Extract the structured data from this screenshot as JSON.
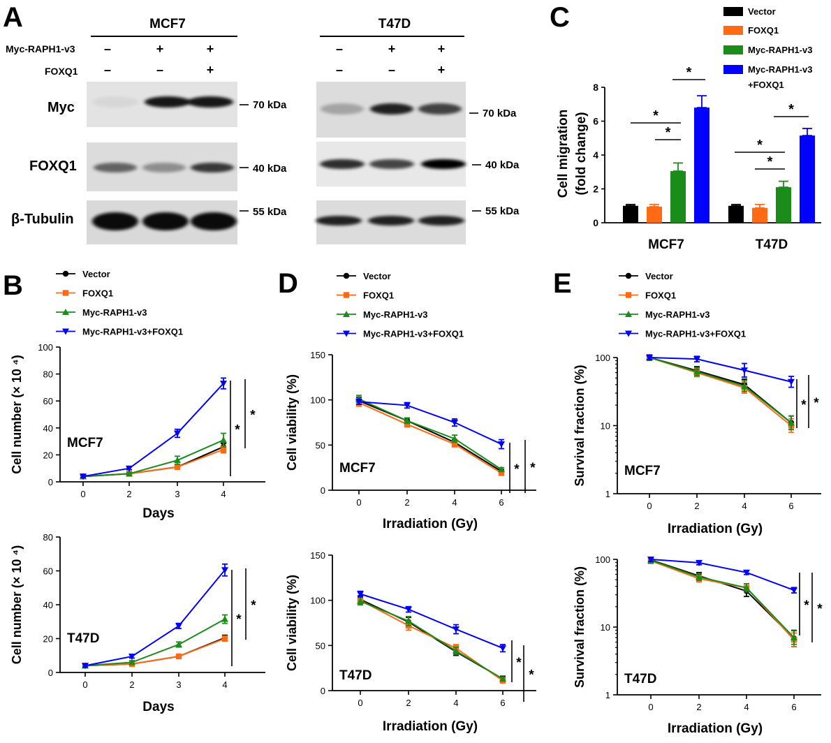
{
  "colors": {
    "vector": "#000000",
    "foxq1": "#ff6a13",
    "myc_raph1": "#1a8c1a",
    "combo": "#0000ff"
  },
  "panel_a": {
    "letter": "A",
    "row_labels": {
      "myc_raph1": "Myc-RAPH1-v3",
      "foxq1": "FOXQ1"
    },
    "blot_labels": [
      "Myc",
      "FOXQ1",
      "β-Tubulin"
    ],
    "cell_lines": [
      {
        "name": "MCF7",
        "myc_raph1": [
          "–",
          "+",
          "+"
        ],
        "foxq1": [
          "–",
          "–",
          "+"
        ],
        "sizes": [
          "70 kDa",
          "40 kDa",
          "55 kDa"
        ]
      },
      {
        "name": "T47D",
        "myc_raph1": [
          "–",
          "+",
          "+"
        ],
        "foxq1": [
          "–",
          "–",
          "+"
        ],
        "sizes": [
          "70 kDa",
          "40 kDa",
          "55 kDa"
        ]
      }
    ],
    "band_intensity": {
      "MCF7": {
        "myc": [
          0.05,
          0.9,
          0.9
        ],
        "foxq1": [
          0.55,
          0.35,
          0.75
        ],
        "tubulin": [
          0.95,
          0.95,
          0.95
        ]
      },
      "T47D": {
        "myc": [
          0.25,
          0.85,
          0.7
        ],
        "foxq1": [
          0.8,
          0.7,
          1.0
        ],
        "tubulin": [
          0.85,
          0.85,
          0.85
        ]
      }
    }
  },
  "chart_data": [
    {
      "id": "C",
      "panel_letter": "C",
      "type": "bar",
      "categories": [
        "MCF7",
        "T47D"
      ],
      "ylabel_lines": [
        "Cell migration",
        "(fold change)"
      ],
      "ylim": [
        0,
        8
      ],
      "yticks": [
        "0",
        "2",
        "4",
        "6",
        "8"
      ],
      "legend_position": "top-right",
      "series": [
        {
          "name": "Vector",
          "color": "#000000",
          "values": [
            1.0,
            1.0
          ],
          "errors": [
            0.08,
            0.08
          ]
        },
        {
          "name": "FOXQ1",
          "color": "#ff6a13",
          "values": [
            0.95,
            0.88
          ],
          "errors": [
            0.13,
            0.2
          ]
        },
        {
          "name": "Myc-RAPH1-v3",
          "color": "#1a8c1a",
          "values": [
            3.05,
            2.1
          ],
          "errors": [
            0.48,
            0.35
          ]
        },
        {
          "name": "Myc-RAPH1-v3\n+FOXQ1",
          "color": "#0000ff",
          "values": [
            6.8,
            5.15
          ],
          "errors": [
            0.7,
            0.42
          ]
        }
      ],
      "significance": [
        "*",
        "*",
        "*",
        "*",
        "*",
        "*"
      ]
    },
    {
      "id": "B1",
      "panel_letter": "B",
      "cell_line": "MCF7",
      "type": "line",
      "xlabel": "Days",
      "ylabel": "Cell number (× 10 ⁴)",
      "x_categories": [
        "0",
        "2",
        "3",
        "4"
      ],
      "ylim": [
        0,
        100
      ],
      "yticks": [
        "0",
        "20",
        "40",
        "60",
        "80",
        "100"
      ],
      "legend_position": "top-left",
      "series": [
        {
          "name": "Vector",
          "color": "#000000",
          "marker": "circle",
          "values": [
            4,
            6,
            11,
            26
          ],
          "errors": [
            0.8,
            0.8,
            1.5,
            2.5
          ]
        },
        {
          "name": "FOXQ1",
          "color": "#ff6a13",
          "marker": "square",
          "values": [
            4,
            6,
            11,
            24
          ],
          "errors": [
            0.8,
            0.8,
            1.5,
            2.5
          ]
        },
        {
          "name": "Myc-RAPH1-v3",
          "color": "#1a8c1a",
          "marker": "triangle-up",
          "values": [
            4,
            6,
            16,
            31
          ],
          "errors": [
            0.8,
            1,
            3,
            5
          ]
        },
        {
          "name": "Myc-RAPH1-v3+FOXQ1",
          "color": "#0000ff",
          "marker": "triangle-down",
          "values": [
            4,
            10,
            36,
            73
          ],
          "errors": [
            0.8,
            1,
            3,
            4
          ]
        }
      ],
      "significance": [
        "*",
        "*"
      ]
    },
    {
      "id": "B2",
      "cell_line": "T47D",
      "type": "line",
      "xlabel": "Days",
      "ylabel": "Cell number (× 10 ⁴)",
      "x_categories": [
        "0",
        "2",
        "3",
        "4"
      ],
      "ylim": [
        0,
        80
      ],
      "yticks": [
        "0",
        "20",
        "40",
        "60",
        "80"
      ],
      "series": [
        {
          "name": "Vector",
          "color": "#000000",
          "marker": "circle",
          "values": [
            4,
            5,
            9.5,
            20.5
          ],
          "errors": [
            0.8,
            0.8,
            1.2,
            1.5
          ]
        },
        {
          "name": "FOXQ1",
          "color": "#ff6a13",
          "marker": "square",
          "values": [
            4,
            5,
            9.5,
            20
          ],
          "errors": [
            0.8,
            0.8,
            1.2,
            1.5
          ]
        },
        {
          "name": "Myc-RAPH1-v3",
          "color": "#1a8c1a",
          "marker": "triangle-up",
          "values": [
            4,
            6,
            16.5,
            31.5
          ],
          "errors": [
            0.8,
            1,
            1.5,
            2.5
          ]
        },
        {
          "name": "Myc-RAPH1-v3+FOXQ1",
          "color": "#0000ff",
          "marker": "triangle-down",
          "values": [
            4,
            9.5,
            27.5,
            60.5
          ],
          "errors": [
            0.8,
            1,
            1.5,
            3.5
          ]
        }
      ],
      "significance": [
        "*",
        "*"
      ]
    },
    {
      "id": "D1",
      "panel_letter": "D",
      "cell_line": "MCF7",
      "type": "line",
      "xlabel": "Irradiation (Gy)",
      "ylabel": "Cell viability (%)",
      "x_categories": [
        "0",
        "2",
        "4",
        "6"
      ],
      "ylim": [
        0,
        150
      ],
      "yticks": [
        "0",
        "50",
        "100",
        "150"
      ],
      "legend_position": "top-left",
      "series": [
        {
          "name": "Vector",
          "color": "#000000",
          "marker": "circle",
          "values": [
            99,
            77,
            53,
            21
          ],
          "errors": [
            4,
            3,
            3,
            2
          ]
        },
        {
          "name": "FOXQ1",
          "color": "#ff6a13",
          "marker": "square",
          "values": [
            97,
            73,
            51,
            19
          ],
          "errors": [
            4,
            3,
            3,
            2
          ]
        },
        {
          "name": "Myc-RAPH1-v3",
          "color": "#1a8c1a",
          "marker": "triangle-up",
          "values": [
            101,
            77,
            57,
            23
          ],
          "errors": [
            4,
            3,
            4,
            2
          ]
        },
        {
          "name": "Myc-RAPH1-v3+FOXQ1",
          "color": "#0000ff",
          "marker": "triangle-down",
          "values": [
            98,
            94,
            75,
            51
          ],
          "errors": [
            3,
            3,
            4,
            5
          ]
        }
      ],
      "significance": [
        "*",
        "*"
      ]
    },
    {
      "id": "D2",
      "cell_line": "T47D",
      "type": "line",
      "xlabel": "Irradiation (Gy)",
      "ylabel": "Cell viability (%)",
      "x_categories": [
        "0",
        "2",
        "4",
        "6"
      ],
      "ylim": [
        0,
        150
      ],
      "yticks": [
        "0",
        "50",
        "100",
        "150"
      ],
      "series": [
        {
          "name": "Vector",
          "color": "#000000",
          "marker": "circle",
          "values": [
            101,
            76,
            43,
            13
          ],
          "errors": [
            4,
            5,
            4,
            3
          ]
        },
        {
          "name": "FOXQ1",
          "color": "#ff6a13",
          "marker": "square",
          "values": [
            100,
            72,
            47,
            11
          ],
          "errors": [
            4,
            5,
            4,
            2
          ]
        },
        {
          "name": "Myc-RAPH1-v3",
          "color": "#1a8c1a",
          "marker": "triangle-up",
          "values": [
            99,
            77,
            44,
            13
          ],
          "errors": [
            4,
            5,
            4,
            2
          ]
        },
        {
          "name": "Myc-RAPH1-v3+FOXQ1",
          "color": "#0000ff",
          "marker": "triangle-down",
          "values": [
            107,
            90,
            68,
            47
          ],
          "errors": [
            3,
            3,
            5,
            4
          ]
        }
      ],
      "significance": [
        "*",
        "*"
      ]
    },
    {
      "id": "E1",
      "panel_letter": "E",
      "cell_line": "MCF7",
      "type": "line",
      "xlabel": "Irradiation (Gy)",
      "ylabel": "Survival fraction (%)",
      "x_categories": [
        "0",
        "2",
        "4",
        "6"
      ],
      "yscale": "log",
      "ylim": [
        1,
        100
      ],
      "yticks": [
        "1",
        "10",
        "100"
      ],
      "legend_position": "top-left",
      "series": [
        {
          "name": "Vector",
          "color": "#000000",
          "marker": "circle",
          "values": [
            100,
            64,
            40,
            11
          ],
          "errors": [
            0.04,
            0.06,
            0.08,
            0.1
          ]
        },
        {
          "name": "FOXQ1",
          "color": "#ff6a13",
          "marker": "square",
          "values": [
            100,
            60,
            36,
            10
          ],
          "errors": [
            0.04,
            0.06,
            0.08,
            0.1
          ]
        },
        {
          "name": "Myc-RAPH1-v3",
          "color": "#1a8c1a",
          "marker": "triangle-up",
          "values": [
            100,
            62,
            38,
            11
          ],
          "errors": [
            0.04,
            0.06,
            0.08,
            0.1
          ]
        },
        {
          "name": "Myc-RAPH1-v3+FOXQ1",
          "color": "#0000ff",
          "marker": "triangle-down",
          "values": [
            100,
            95,
            65,
            44
          ],
          "errors": [
            0.03,
            0.04,
            0.1,
            0.08
          ]
        }
      ],
      "significance": [
        "*",
        "*"
      ]
    },
    {
      "id": "E2",
      "cell_line": "T47D",
      "type": "line",
      "xlabel": "Irradiation (Gy)",
      "ylabel": "Survival fraction (%)",
      "x_categories": [
        "0",
        "2",
        "4",
        "6"
      ],
      "yscale": "log",
      "ylim": [
        1,
        100
      ],
      "yticks": [
        "1",
        "10",
        "100"
      ],
      "series": [
        {
          "name": "Vector",
          "color": "#000000",
          "marker": "circle",
          "values": [
            98,
            57,
            34,
            6.8
          ],
          "errors": [
            0.04,
            0.05,
            0.08,
            0.12
          ]
        },
        {
          "name": "FOXQ1",
          "color": "#ff6a13",
          "marker": "square",
          "values": [
            95,
            52,
            38,
            6.5
          ],
          "errors": [
            0.04,
            0.05,
            0.06,
            0.1
          ]
        },
        {
          "name": "Myc-RAPH1-v3",
          "color": "#1a8c1a",
          "marker": "triangle-up",
          "values": [
            97,
            55,
            38,
            7
          ],
          "errors": [
            0.04,
            0.05,
            0.06,
            0.1
          ]
        },
        {
          "name": "Myc-RAPH1-v3+FOXQ1",
          "color": "#0000ff",
          "marker": "triangle-down",
          "values": [
            100,
            89,
            64,
            35
          ],
          "errors": [
            0.03,
            0.03,
            0.03,
            0.04
          ]
        }
      ],
      "significance": [
        "*",
        "*"
      ]
    }
  ]
}
